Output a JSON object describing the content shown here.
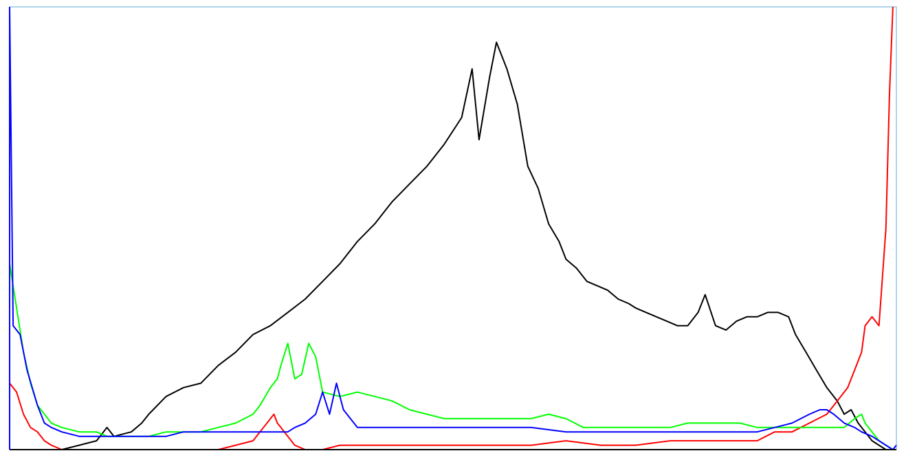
{
  "chart_data": {
    "type": "line",
    "title": "",
    "xlabel": "",
    "ylabel": "",
    "xlim": [
      0,
      255
    ],
    "ylim": [
      0,
      100
    ],
    "grid": false,
    "legend": "none",
    "colors": {
      "frame": "#5aaed6",
      "luminance": "#000000",
      "red": "#ff0000",
      "green": "#00ff00",
      "blue": "#0000ff"
    },
    "series": [
      {
        "name": "luminance",
        "points": [
          [
            0,
            0
          ],
          [
            15,
            0
          ],
          [
            20,
            1
          ],
          [
            25,
            2
          ],
          [
            28,
            5
          ],
          [
            30,
            3
          ],
          [
            35,
            4
          ],
          [
            38,
            6
          ],
          [
            40,
            8
          ],
          [
            45,
            12
          ],
          [
            50,
            14
          ],
          [
            55,
            15
          ],
          [
            60,
            19
          ],
          [
            65,
            22
          ],
          [
            70,
            26
          ],
          [
            75,
            28
          ],
          [
            80,
            31
          ],
          [
            85,
            34
          ],
          [
            90,
            38
          ],
          [
            95,
            42
          ],
          [
            100,
            47
          ],
          [
            105,
            51
          ],
          [
            110,
            56
          ],
          [
            115,
            60
          ],
          [
            120,
            64
          ],
          [
            125,
            69
          ],
          [
            130,
            75
          ],
          [
            133,
            86
          ],
          [
            135,
            70
          ],
          [
            138,
            84
          ],
          [
            140,
            92
          ],
          [
            143,
            86
          ],
          [
            146,
            78
          ],
          [
            149,
            64
          ],
          [
            152,
            59
          ],
          [
            155,
            51
          ],
          [
            158,
            47
          ],
          [
            160,
            43
          ],
          [
            163,
            41
          ],
          [
            166,
            38
          ],
          [
            169,
            37
          ],
          [
            172,
            36
          ],
          [
            175,
            34
          ],
          [
            178,
            33
          ],
          [
            180,
            32
          ],
          [
            183,
            31
          ],
          [
            186,
            30
          ],
          [
            189,
            29
          ],
          [
            192,
            28
          ],
          [
            195,
            28
          ],
          [
            198,
            31
          ],
          [
            200,
            35
          ],
          [
            203,
            28
          ],
          [
            206,
            27
          ],
          [
            209,
            29
          ],
          [
            212,
            30
          ],
          [
            215,
            30
          ],
          [
            218,
            31
          ],
          [
            221,
            31
          ],
          [
            224,
            30
          ],
          [
            226,
            26
          ],
          [
            229,
            22
          ],
          [
            232,
            18
          ],
          [
            235,
            14
          ],
          [
            238,
            11
          ],
          [
            240,
            8
          ],
          [
            242,
            9
          ],
          [
            244,
            6
          ],
          [
            246,
            4
          ],
          [
            248,
            2
          ],
          [
            250,
            1
          ],
          [
            252,
            0
          ],
          [
            255,
            0
          ]
        ]
      },
      {
        "name": "red",
        "points": [
          [
            0,
            15
          ],
          [
            2,
            13
          ],
          [
            4,
            8
          ],
          [
            6,
            5
          ],
          [
            8,
            4
          ],
          [
            10,
            2
          ],
          [
            12,
            1
          ],
          [
            15,
            0
          ],
          [
            20,
            0
          ],
          [
            40,
            0
          ],
          [
            50,
            0
          ],
          [
            60,
            0
          ],
          [
            65,
            1
          ],
          [
            70,
            2
          ],
          [
            72,
            4
          ],
          [
            74,
            6
          ],
          [
            76,
            8
          ],
          [
            77,
            6
          ],
          [
            78,
            5
          ],
          [
            79,
            4
          ],
          [
            80,
            3
          ],
          [
            82,
            1
          ],
          [
            85,
            0
          ],
          [
            90,
            0
          ],
          [
            95,
            1
          ],
          [
            100,
            1
          ],
          [
            110,
            1
          ],
          [
            120,
            1
          ],
          [
            130,
            1
          ],
          [
            140,
            1
          ],
          [
            150,
            1
          ],
          [
            160,
            2
          ],
          [
            170,
            1
          ],
          [
            180,
            1
          ],
          [
            190,
            2
          ],
          [
            200,
            2
          ],
          [
            210,
            2
          ],
          [
            215,
            2
          ],
          [
            220,
            4
          ],
          [
            225,
            4
          ],
          [
            230,
            6
          ],
          [
            235,
            8
          ],
          [
            238,
            11
          ],
          [
            241,
            14
          ],
          [
            243,
            18
          ],
          [
            245,
            22
          ],
          [
            246,
            28
          ],
          [
            248,
            30
          ],
          [
            250,
            28
          ],
          [
            252,
            50
          ],
          [
            253,
            80
          ],
          [
            254,
            100
          ]
        ]
      },
      {
        "name": "green",
        "points": [
          [
            0,
            42
          ],
          [
            2,
            32
          ],
          [
            4,
            22
          ],
          [
            6,
            15
          ],
          [
            8,
            10
          ],
          [
            10,
            8
          ],
          [
            12,
            6
          ],
          [
            15,
            5
          ],
          [
            20,
            4
          ],
          [
            25,
            4
          ],
          [
            28,
            3
          ],
          [
            30,
            3
          ],
          [
            35,
            3
          ],
          [
            40,
            3
          ],
          [
            45,
            4
          ],
          [
            50,
            4
          ],
          [
            55,
            4
          ],
          [
            60,
            5
          ],
          [
            65,
            6
          ],
          [
            70,
            8
          ],
          [
            72,
            10
          ],
          [
            75,
            14
          ],
          [
            77,
            16
          ],
          [
            78,
            19
          ],
          [
            80,
            24
          ],
          [
            82,
            16
          ],
          [
            84,
            17
          ],
          [
            86,
            24
          ],
          [
            88,
            21
          ],
          [
            90,
            13
          ],
          [
            95,
            12
          ],
          [
            100,
            13
          ],
          [
            105,
            12
          ],
          [
            110,
            11
          ],
          [
            115,
            9
          ],
          [
            120,
            8
          ],
          [
            125,
            7
          ],
          [
            130,
            7
          ],
          [
            135,
            7
          ],
          [
            140,
            7
          ],
          [
            145,
            7
          ],
          [
            150,
            7
          ],
          [
            155,
            8
          ],
          [
            160,
            7
          ],
          [
            165,
            5
          ],
          [
            170,
            5
          ],
          [
            175,
            5
          ],
          [
            180,
            5
          ],
          [
            185,
            5
          ],
          [
            190,
            5
          ],
          [
            195,
            6
          ],
          [
            200,
            6
          ],
          [
            205,
            6
          ],
          [
            210,
            6
          ],
          [
            215,
            5
          ],
          [
            220,
            5
          ],
          [
            225,
            5
          ],
          [
            230,
            5
          ],
          [
            235,
            5
          ],
          [
            240,
            5
          ],
          [
            243,
            7
          ],
          [
            245,
            8
          ],
          [
            246,
            6
          ],
          [
            248,
            4
          ],
          [
            250,
            2
          ],
          [
            252,
            1
          ],
          [
            254,
            0
          ]
        ]
      },
      {
        "name": "blue",
        "points": [
          [
            0,
            100
          ],
          [
            1,
            28
          ],
          [
            3,
            26
          ],
          [
            5,
            18
          ],
          [
            8,
            10
          ],
          [
            10,
            6
          ],
          [
            12,
            5
          ],
          [
            15,
            4
          ],
          [
            20,
            3
          ],
          [
            25,
            3
          ],
          [
            30,
            3
          ],
          [
            35,
            3
          ],
          [
            40,
            3
          ],
          [
            45,
            3
          ],
          [
            50,
            4
          ],
          [
            55,
            4
          ],
          [
            60,
            4
          ],
          [
            65,
            4
          ],
          [
            70,
            4
          ],
          [
            75,
            4
          ],
          [
            80,
            4
          ],
          [
            82,
            5
          ],
          [
            85,
            6
          ],
          [
            88,
            8
          ],
          [
            90,
            13
          ],
          [
            92,
            8
          ],
          [
            94,
            15
          ],
          [
            96,
            9
          ],
          [
            98,
            7
          ],
          [
            100,
            5
          ],
          [
            105,
            5
          ],
          [
            110,
            5
          ],
          [
            115,
            5
          ],
          [
            120,
            5
          ],
          [
            125,
            5
          ],
          [
            130,
            5
          ],
          [
            135,
            5
          ],
          [
            140,
            5
          ],
          [
            150,
            5
          ],
          [
            160,
            4
          ],
          [
            170,
            4
          ],
          [
            180,
            4
          ],
          [
            190,
            4
          ],
          [
            200,
            4
          ],
          [
            210,
            4
          ],
          [
            215,
            4
          ],
          [
            220,
            5
          ],
          [
            225,
            6
          ],
          [
            230,
            8
          ],
          [
            233,
            9
          ],
          [
            235,
            9
          ],
          [
            237,
            8
          ],
          [
            240,
            6
          ],
          [
            243,
            5
          ],
          [
            245,
            4
          ],
          [
            248,
            3
          ],
          [
            250,
            2
          ],
          [
            252,
            1
          ],
          [
            254,
            0
          ],
          [
            255,
            1
          ]
        ]
      }
    ]
  }
}
